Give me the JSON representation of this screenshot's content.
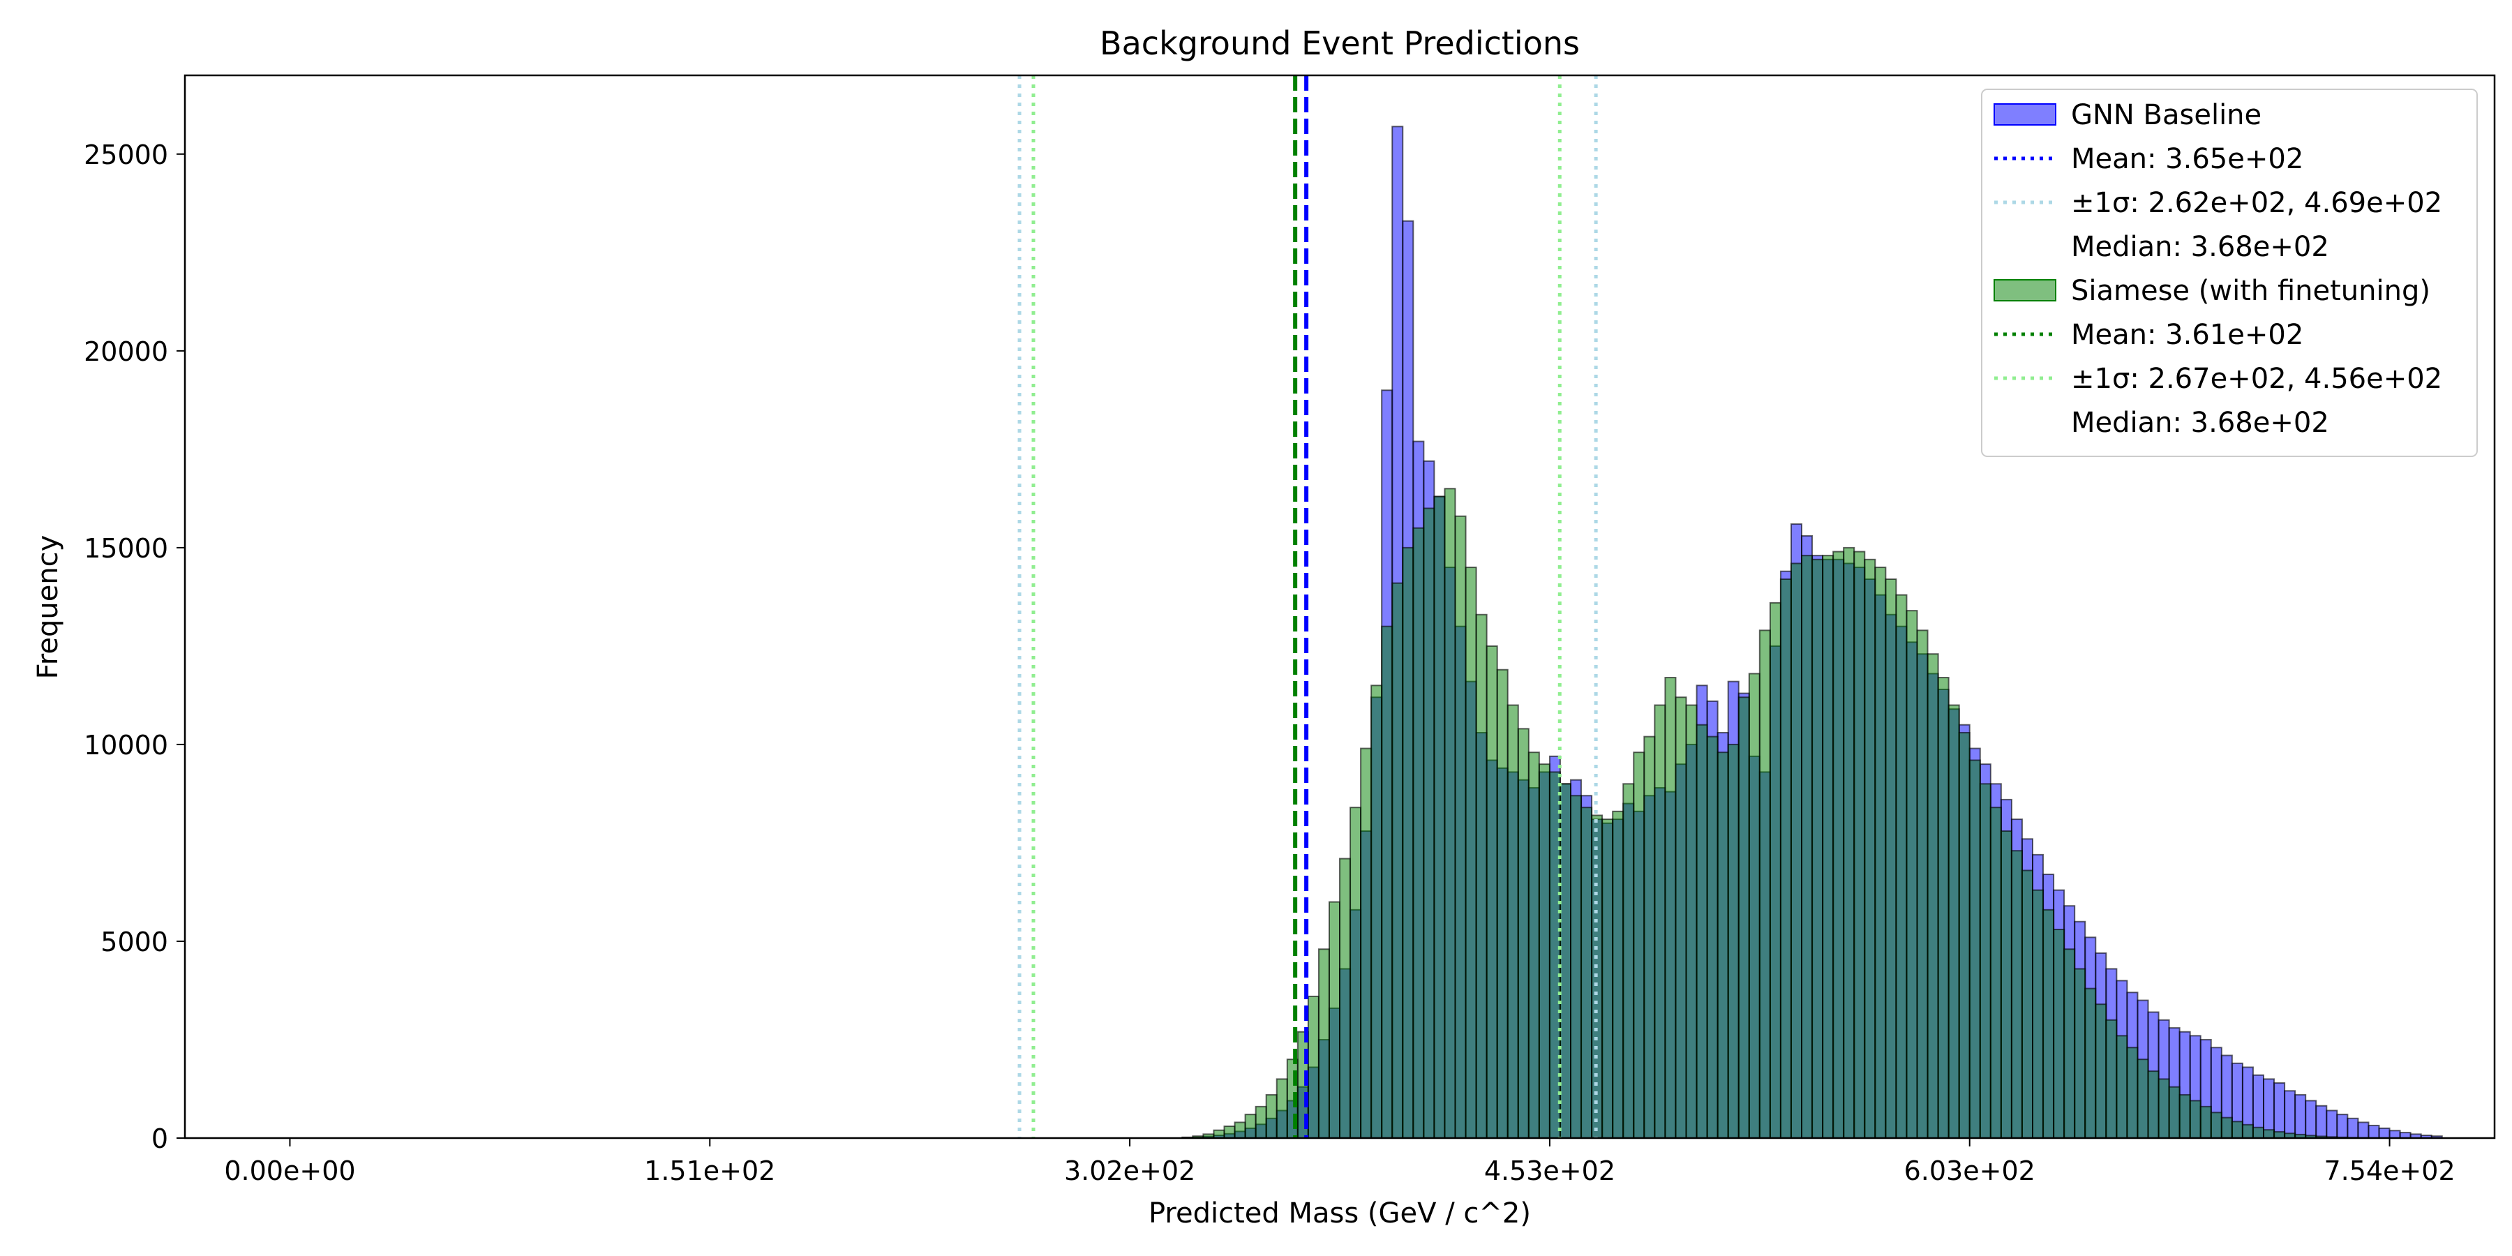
{
  "chart_data": {
    "type": "bar",
    "title": "Background Event Predictions",
    "xlabel": "Predicted Mass (GeV / c^2)",
    "ylabel": "Frequency",
    "xlim": [
      -37.7,
      791.7
    ],
    "ylim": [
      0,
      27000
    ],
    "xticks": [
      0,
      150.8,
      301.6,
      452.4,
      603.2,
      754.0
    ],
    "xtick_labels": [
      "0.00e+00",
      "1.51e+02",
      "3.02e+02",
      "4.53e+02",
      "6.03e+02",
      "7.54e+02"
    ],
    "yticks": [
      0,
      5000,
      10000,
      15000,
      20000,
      25000
    ],
    "ytick_labels": [
      "0",
      "5000",
      "10000",
      "15000",
      "20000",
      "25000"
    ],
    "grid": false,
    "legend_position": "top-right",
    "bins": {
      "start": 0,
      "width": 3.77,
      "count": 200
    },
    "series": [
      {
        "name": "GNN Baseline",
        "kind": "histogram",
        "color": "#0000ff",
        "alpha": 0.5,
        "nonzero_from_bin": 85,
        "counts": [
          0,
          0,
          0,
          0,
          0,
          0,
          0,
          0,
          0,
          0,
          0,
          0,
          0,
          0,
          0,
          0,
          0,
          0,
          0,
          0,
          0,
          0,
          0,
          0,
          0,
          0,
          0,
          0,
          0,
          0,
          0,
          0,
          0,
          0,
          0,
          0,
          0,
          0,
          0,
          0,
          0,
          0,
          0,
          0,
          0,
          0,
          0,
          0,
          0,
          0,
          0,
          0,
          0,
          0,
          0,
          0,
          0,
          0,
          0,
          0,
          0,
          0,
          0,
          0,
          0,
          0,
          0,
          0,
          0,
          0,
          0,
          0,
          0,
          0,
          0,
          0,
          0,
          0,
          0,
          0,
          0,
          0,
          0,
          0,
          0,
          10,
          20,
          40,
          70,
          110,
          170,
          250,
          350,
          500,
          700,
          950,
          1300,
          1800,
          2500,
          3300,
          4300,
          5800,
          7800,
          11200,
          19000,
          25700,
          23300,
          17700,
          17200,
          16300,
          14500,
          13000,
          11600,
          10300,
          9600,
          9400,
          9300,
          9100,
          8900,
          9300,
          9700,
          9000,
          9100,
          8700,
          8100,
          8000,
          8100,
          8500,
          8300,
          8700,
          8900,
          8800,
          9500,
          10000,
          11500,
          11100,
          10300,
          11600,
          11300,
          9700,
          9300,
          12500,
          14400,
          15600,
          15300,
          14800,
          14700,
          14700,
          14600,
          14500,
          14200,
          13800,
          13300,
          13000,
          12600,
          12300,
          11800,
          11400,
          10900,
          10500,
          9900,
          9500,
          9000,
          8600,
          8100,
          7600,
          7200,
          6700,
          6300,
          5900,
          5500,
          5100,
          4700,
          4300,
          4000,
          3700,
          3500,
          3200,
          3000,
          2800,
          2700,
          2600,
          2500,
          2300,
          2100,
          1900,
          1800,
          1600,
          1500,
          1400,
          1200,
          1100,
          950,
          820,
          700,
          600,
          500,
          400,
          320,
          250,
          190,
          140,
          100,
          70,
          50
        ]
      },
      {
        "name": "Siamese (with finetuning)",
        "kind": "histogram",
        "color": "#008000",
        "alpha": 0.5,
        "nonzero_from_bin": 85,
        "counts": [
          0,
          0,
          0,
          0,
          0,
          0,
          0,
          0,
          0,
          0,
          0,
          0,
          0,
          0,
          0,
          0,
          0,
          0,
          0,
          0,
          0,
          0,
          0,
          0,
          0,
          0,
          0,
          0,
          0,
          0,
          0,
          0,
          0,
          0,
          0,
          0,
          0,
          0,
          0,
          0,
          0,
          0,
          0,
          0,
          0,
          0,
          0,
          0,
          0,
          0,
          0,
          0,
          0,
          0,
          0,
          0,
          0,
          0,
          0,
          0,
          0,
          0,
          0,
          0,
          0,
          0,
          0,
          0,
          0,
          0,
          0,
          0,
          0,
          0,
          0,
          0,
          0,
          0,
          0,
          0,
          0,
          0,
          0,
          0,
          0,
          20,
          50,
          100,
          200,
          300,
          400,
          600,
          800,
          1100,
          1500,
          2000,
          2700,
          3600,
          4800,
          6000,
          7100,
          8400,
          9900,
          11500,
          13000,
          14100,
          15000,
          15500,
          16000,
          16300,
          16500,
          15800,
          14500,
          13300,
          12500,
          11900,
          11000,
          10400,
          9800,
          9500,
          9300,
          9000,
          8700,
          8400,
          8200,
          8100,
          8300,
          9000,
          9800,
          10200,
          11000,
          11700,
          11200,
          11000,
          10500,
          10200,
          9800,
          10000,
          11200,
          11800,
          12900,
          13600,
          14200,
          14600,
          14800,
          14700,
          14800,
          14900,
          15000,
          14900,
          14700,
          14500,
          14200,
          13800,
          13400,
          12900,
          12300,
          11700,
          11000,
          10300,
          9600,
          9000,
          8400,
          7800,
          7300,
          6800,
          6300,
          5800,
          5300,
          4800,
          4300,
          3800,
          3400,
          3000,
          2600,
          2300,
          2000,
          1700,
          1500,
          1300,
          1100,
          950,
          800,
          650,
          520,
          420,
          340,
          270,
          210,
          160,
          120,
          90,
          65,
          45,
          30,
          20,
          12,
          8,
          5,
          3,
          2,
          1,
          0,
          0,
          0
        ]
      }
    ],
    "reference_lines": [
      {
        "series": "GNN Baseline",
        "kind": "mean",
        "value": 365,
        "style": "dashed",
        "color": "#0000ff"
      },
      {
        "series": "GNN Baseline",
        "kind": "sigma_low",
        "value": 262,
        "style": "dotted",
        "color": "#add8e6"
      },
      {
        "series": "GNN Baseline",
        "kind": "sigma_high",
        "value": 469,
        "style": "dotted",
        "color": "#add8e6"
      },
      {
        "series": "Siamese (with finetuning)",
        "kind": "mean",
        "value": 361,
        "style": "dashed",
        "color": "#008000"
      },
      {
        "series": "Siamese (with finetuning)",
        "kind": "sigma_low",
        "value": 267,
        "style": "dotted",
        "color": "#90ee90"
      },
      {
        "series": "Siamese (with finetuning)",
        "kind": "sigma_high",
        "value": 456,
        "style": "dotted",
        "color": "#90ee90"
      }
    ],
    "legend": [
      {
        "label": "GNN Baseline",
        "marker": "patch",
        "color": "#0000ff"
      },
      {
        "label": "Mean: 3.65e+02",
        "marker": "dotted",
        "color": "#0000ff"
      },
      {
        "label": "±1σ: 2.62e+02, 4.69e+02",
        "marker": "dotted",
        "color": "#add8e6"
      },
      {
        "label": "Median: 3.68e+02",
        "marker": "none",
        "color": ""
      },
      {
        "label": "Siamese (with finetuning)",
        "marker": "patch",
        "color": "#008000"
      },
      {
        "label": "Mean: 3.61e+02",
        "marker": "dotted",
        "color": "#008000"
      },
      {
        "label": "±1σ: 2.67e+02, 4.56e+02",
        "marker": "dotted",
        "color": "#90ee90"
      },
      {
        "label": "Median: 3.68e+02",
        "marker": "none",
        "color": ""
      }
    ]
  }
}
